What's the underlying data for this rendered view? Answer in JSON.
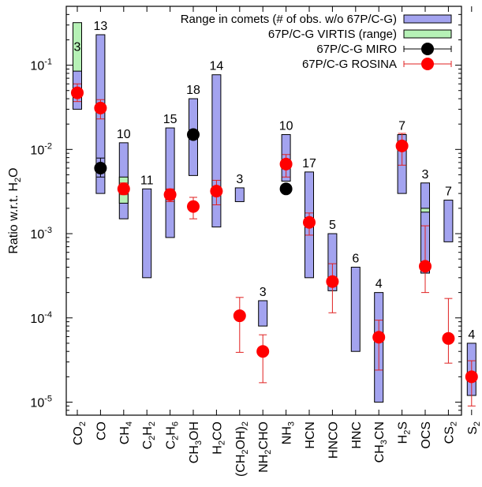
{
  "chart_data": {
    "type": "range-and-points",
    "yscale": "log",
    "ylim": [
      7e-06,
      0.5
    ],
    "ylabel": "Ratio w.r.t. H2O",
    "ylabel_main": "Ratio w.r.t. H",
    "ylabel_sub": "2",
    "ylabel_tail": "O",
    "ytick_values": [
      1e-05,
      0.0001,
      0.001,
      0.01,
      0.1
    ],
    "ytick_mantissa": [
      "10",
      "10",
      "10",
      "10",
      "10"
    ],
    "ytick_exponents": [
      "-5",
      "-4",
      "-3",
      "-2",
      "-1"
    ],
    "categories": [
      {
        "key": "CO2",
        "parts": [
          [
            "CO",
            ""
          ],
          [
            "2",
            "sub"
          ]
        ]
      },
      {
        "key": "CO",
        "parts": [
          [
            "CO",
            ""
          ]
        ]
      },
      {
        "key": "CH4",
        "parts": [
          [
            "CH",
            ""
          ],
          [
            "4",
            "sub"
          ]
        ]
      },
      {
        "key": "C2H2",
        "parts": [
          [
            "C",
            ""
          ],
          [
            "2",
            "sub"
          ],
          [
            "H",
            ""
          ],
          [
            "2",
            "sub"
          ]
        ]
      },
      {
        "key": "C2H6",
        "parts": [
          [
            "C",
            ""
          ],
          [
            "2",
            "sub"
          ],
          [
            "H",
            ""
          ],
          [
            "6",
            "sub"
          ]
        ]
      },
      {
        "key": "CH3OH",
        "parts": [
          [
            "CH",
            ""
          ],
          [
            "3",
            "sub"
          ],
          [
            "OH",
            ""
          ]
        ]
      },
      {
        "key": "H2CO",
        "parts": [
          [
            "H",
            ""
          ],
          [
            "2",
            "sub"
          ],
          [
            "CO",
            ""
          ]
        ]
      },
      {
        "key": "(CH2OH)2",
        "parts": [
          [
            "(CH",
            ""
          ],
          [
            "2",
            "sub"
          ],
          [
            "OH)",
            ""
          ],
          [
            "2",
            "sub"
          ]
        ]
      },
      {
        "key": "NH2CHO",
        "parts": [
          [
            "NH",
            ""
          ],
          [
            "2",
            "sub"
          ],
          [
            "CHO",
            ""
          ]
        ]
      },
      {
        "key": "NH3",
        "parts": [
          [
            "NH",
            ""
          ],
          [
            "3",
            "sub"
          ]
        ]
      },
      {
        "key": "HCN",
        "parts": [
          [
            "HCN",
            ""
          ]
        ]
      },
      {
        "key": "HNCO",
        "parts": [
          [
            "HNCO",
            ""
          ]
        ]
      },
      {
        "key": "HNC",
        "parts": [
          [
            "HNC",
            ""
          ]
        ]
      },
      {
        "key": "CH3CN",
        "parts": [
          [
            "CH",
            ""
          ],
          [
            "3",
            "sub"
          ],
          [
            "CN",
            ""
          ]
        ]
      },
      {
        "key": "H2S",
        "parts": [
          [
            "H",
            ""
          ],
          [
            "2",
            "sub"
          ],
          [
            "S",
            ""
          ]
        ]
      },
      {
        "key": "OCS",
        "parts": [
          [
            "OCS",
            ""
          ]
        ]
      },
      {
        "key": "CS2",
        "parts": [
          [
            "CS",
            ""
          ],
          [
            "2",
            "sub"
          ]
        ]
      },
      {
        "key": "S2",
        "parts": [
          [
            "S",
            ""
          ],
          [
            "2",
            "sub"
          ]
        ]
      }
    ],
    "comet_ranges": [
      {
        "cat": 0,
        "low": 0.03,
        "high": 0.13,
        "label": "3"
      },
      {
        "cat": 1,
        "low": 0.003,
        "high": 0.23,
        "label": "13"
      },
      {
        "cat": 2,
        "low": 0.0015,
        "high": 0.012,
        "label": "10"
      },
      {
        "cat": 3,
        "low": 0.0003,
        "high": 0.0034,
        "label": "11"
      },
      {
        "cat": 4,
        "low": 0.0009,
        "high": 0.018,
        "label": "15"
      },
      {
        "cat": 5,
        "low": 0.0049,
        "high": 0.04,
        "label": "18"
      },
      {
        "cat": 6,
        "low": 0.0012,
        "high": 0.077,
        "label": "14"
      },
      {
        "cat": 7,
        "low": 0.0024,
        "high": 0.0035,
        "label": "3"
      },
      {
        "cat": 8,
        "low": 8e-05,
        "high": 0.00016,
        "label": "3"
      },
      {
        "cat": 9,
        "low": 0.0042,
        "high": 0.015,
        "label": "10"
      },
      {
        "cat": 10,
        "low": 0.0003,
        "high": 0.0054,
        "label": "17"
      },
      {
        "cat": 11,
        "low": 0.00021,
        "high": 0.001,
        "label": "5"
      },
      {
        "cat": 12,
        "low": 4e-05,
        "high": 0.0004,
        "label": "6"
      },
      {
        "cat": 13,
        "low": 1e-05,
        "high": 0.0002,
        "label": "4"
      },
      {
        "cat": 14,
        "low": 0.003,
        "high": 0.015,
        "label": "7"
      },
      {
        "cat": 15,
        "low": 0.00034,
        "high": 0.004,
        "label": "3"
      },
      {
        "cat": 16,
        "low": 0.0008,
        "high": 0.0025,
        "label": "7"
      },
      {
        "cat": 17,
        "low": 1.2e-05,
        "high": 5e-05,
        "label": "4"
      }
    ],
    "virtis_ranges": [
      {
        "cat": 0,
        "low": 0.085,
        "high": 0.32
      },
      {
        "cat": 2,
        "low": 0.0023,
        "high": 0.0047
      },
      {
        "cat": 15,
        "low": 0.0018,
        "high": 0.002
      }
    ],
    "miro_points": [
      {
        "cat": 1,
        "value": 0.006,
        "err_low": 0.0047,
        "err_high": 0.0079
      },
      {
        "cat": 5,
        "value": 0.015
      },
      {
        "cat": 9,
        "value": 0.0034
      }
    ],
    "rosina_points": [
      {
        "cat": 0,
        "value": 0.047,
        "err_low": 0.037,
        "err_high": 0.06
      },
      {
        "cat": 1,
        "value": 0.031,
        "err_low": 0.023,
        "err_high": 0.039
      },
      {
        "cat": 2,
        "value": 0.0034,
        "err_low": 0.0029,
        "err_high": 0.004
      },
      {
        "cat": 4,
        "value": 0.0029,
        "err_low": 0.0024,
        "err_high": 0.0034
      },
      {
        "cat": 5,
        "value": 0.0021,
        "err_low": 0.0015,
        "err_high": 0.0027
      },
      {
        "cat": 6,
        "value": 0.0032,
        "err_low": 0.0022,
        "err_high": 0.0043
      },
      {
        "cat": 7,
        "value": 0.000106,
        "err_low": 3.9e-05,
        "err_high": 0.000175
      },
      {
        "cat": 8,
        "value": 4e-05,
        "err_low": 1.7e-05,
        "err_high": 6.3e-05
      },
      {
        "cat": 9,
        "value": 0.0067,
        "err_low": 0.0047,
        "err_high": 0.0087
      },
      {
        "cat": 10,
        "value": 0.00136,
        "err_low": 0.00096,
        "err_high": 0.00176
      },
      {
        "cat": 11,
        "value": 0.00027,
        "err_low": 0.000115,
        "err_high": 0.00044
      },
      {
        "cat": 13,
        "value": 5.9e-05,
        "err_low": 2.4e-05,
        "err_high": 9.4e-05
      },
      {
        "cat": 14,
        "value": 0.011,
        "err_low": 0.0065,
        "err_high": 0.0155
      },
      {
        "cat": 15,
        "value": 0.00041,
        "err_low": 0.0002,
        "err_high": 0.00124
      },
      {
        "cat": 16,
        "value": 5.7e-05,
        "err_low": 2.9e-05,
        "err_high": 0.00017
      },
      {
        "cat": 17,
        "value": 2e-05,
        "err_low": 9e-06,
        "err_high": 3.1e-05
      }
    ],
    "legend": {
      "placement": "top-right",
      "entries": [
        {
          "label": "Range in comets (# of obs. w/o 67P/C-G)",
          "kind": "box",
          "color": "#a3a3ef"
        },
        {
          "label": "67P/C-G VIRTIS (range)",
          "kind": "box",
          "color": "#b6f1b6"
        },
        {
          "label": "67P/C-G MIRO",
          "kind": "point",
          "color": "#000000"
        },
        {
          "label": "67P/C-G ROSINA",
          "kind": "point",
          "color": "#ff0000"
        }
      ]
    },
    "colors": {
      "comet_fill": "#a3a3ef",
      "virtis_fill": "#b6f1b6",
      "miro": "#000000",
      "rosina": "#ff0000",
      "rosina_err": "#e02020"
    }
  }
}
